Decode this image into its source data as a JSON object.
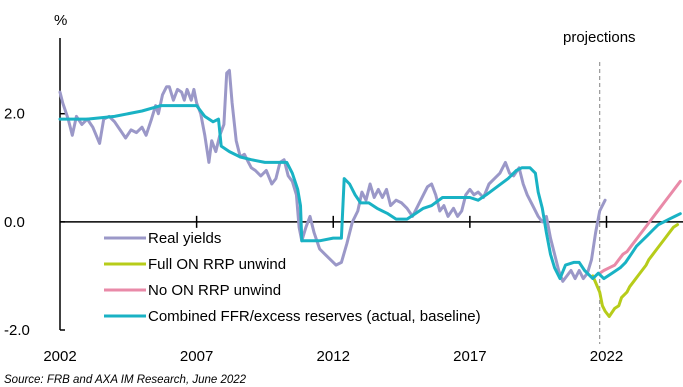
{
  "chart_data": {
    "type": "line",
    "ylabel": "%",
    "annotation": "projections",
    "projection_start": 2021.75,
    "source": "Source: FRB and AXA IM Research, June 2022",
    "xlim": [
      2002,
      2024.8
    ],
    "ylim": [
      -2.0,
      3.4
    ],
    "x_ticks": [
      2002,
      2007,
      2012,
      2017,
      2022
    ],
    "x_tick_labels": [
      "2002",
      "2007",
      "2012",
      "2017",
      "2022"
    ],
    "y_ticks": [
      2.0,
      0.0,
      -2.0
    ],
    "y_tick_labels": [
      "2.0",
      "0.0",
      "-2.0"
    ],
    "colors": {
      "real_yields": "#9b98c8",
      "full_unwind": "#b7cc1a",
      "no_unwind": "#e98aa8",
      "combined": "#19b2c4"
    },
    "series": [
      {
        "name": "Real yields",
        "color": "#9b98c8",
        "points": [
          [
            2002.0,
            2.4
          ],
          [
            2002.1,
            2.2
          ],
          [
            2002.3,
            1.9
          ],
          [
            2002.45,
            1.6
          ],
          [
            2002.6,
            1.95
          ],
          [
            2002.8,
            1.8
          ],
          [
            2003.0,
            1.9
          ],
          [
            2003.2,
            1.75
          ],
          [
            2003.45,
            1.45
          ],
          [
            2003.6,
            1.9
          ],
          [
            2003.8,
            1.95
          ],
          [
            2004.0,
            1.85
          ],
          [
            2004.2,
            1.7
          ],
          [
            2004.4,
            1.55
          ],
          [
            2004.6,
            1.7
          ],
          [
            2004.8,
            1.65
          ],
          [
            2005.0,
            1.75
          ],
          [
            2005.15,
            1.6
          ],
          [
            2005.35,
            1.9
          ],
          [
            2005.5,
            2.15
          ],
          [
            2005.6,
            2.0
          ],
          [
            2005.75,
            2.35
          ],
          [
            2005.9,
            2.5
          ],
          [
            2006.0,
            2.5
          ],
          [
            2006.15,
            2.25
          ],
          [
            2006.3,
            2.45
          ],
          [
            2006.45,
            2.4
          ],
          [
            2006.55,
            2.25
          ],
          [
            2006.65,
            2.45
          ],
          [
            2006.8,
            2.25
          ],
          [
            2006.9,
            2.45
          ],
          [
            2007.0,
            2.2
          ],
          [
            2007.15,
            2.0
          ],
          [
            2007.3,
            1.6
          ],
          [
            2007.45,
            1.1
          ],
          [
            2007.55,
            1.5
          ],
          [
            2007.7,
            1.3
          ],
          [
            2007.85,
            1.6
          ],
          [
            2008.0,
            1.8
          ],
          [
            2008.1,
            2.75
          ],
          [
            2008.2,
            2.8
          ],
          [
            2008.3,
            2.2
          ],
          [
            2008.45,
            1.5
          ],
          [
            2008.6,
            1.2
          ],
          [
            2008.75,
            1.25
          ],
          [
            2008.9,
            1.1
          ],
          [
            2009.0,
            1.0
          ],
          [
            2009.15,
            0.95
          ],
          [
            2009.35,
            0.85
          ],
          [
            2009.55,
            0.95
          ],
          [
            2009.75,
            0.7
          ],
          [
            2009.9,
            0.8
          ],
          [
            2010.05,
            1.1
          ],
          [
            2010.2,
            1.15
          ],
          [
            2010.35,
            0.85
          ],
          [
            2010.5,
            0.75
          ],
          [
            2010.65,
            0.5
          ],
          [
            2010.75,
            -0.1
          ],
          [
            2010.85,
            -0.35
          ],
          [
            2011.0,
            -0.1
          ],
          [
            2011.15,
            0.1
          ],
          [
            2011.3,
            -0.2
          ],
          [
            2011.5,
            -0.5
          ],
          [
            2011.7,
            -0.6
          ],
          [
            2011.9,
            -0.7
          ],
          [
            2012.1,
            -0.8
          ],
          [
            2012.3,
            -0.75
          ],
          [
            2012.5,
            -0.4
          ],
          [
            2012.7,
            0.0
          ],
          [
            2012.9,
            0.2
          ],
          [
            2013.05,
            0.55
          ],
          [
            2013.2,
            0.4
          ],
          [
            2013.35,
            0.7
          ],
          [
            2013.5,
            0.45
          ],
          [
            2013.65,
            0.6
          ],
          [
            2013.8,
            0.45
          ],
          [
            2013.95,
            0.6
          ],
          [
            2014.1,
            0.3
          ],
          [
            2014.3,
            0.4
          ],
          [
            2014.5,
            0.35
          ],
          [
            2014.7,
            0.25
          ],
          [
            2014.9,
            0.1
          ],
          [
            2015.1,
            0.3
          ],
          [
            2015.3,
            0.5
          ],
          [
            2015.45,
            0.65
          ],
          [
            2015.6,
            0.7
          ],
          [
            2015.75,
            0.5
          ],
          [
            2015.9,
            0.2
          ],
          [
            2016.05,
            0.3
          ],
          [
            2016.2,
            0.1
          ],
          [
            2016.4,
            0.25
          ],
          [
            2016.55,
            0.1
          ],
          [
            2016.7,
            0.2
          ],
          [
            2016.85,
            0.5
          ],
          [
            2017.0,
            0.6
          ],
          [
            2017.15,
            0.5
          ],
          [
            2017.3,
            0.55
          ],
          [
            2017.5,
            0.45
          ],
          [
            2017.7,
            0.7
          ],
          [
            2017.9,
            0.8
          ],
          [
            2018.1,
            0.9
          ],
          [
            2018.3,
            1.1
          ],
          [
            2018.45,
            0.9
          ],
          [
            2018.6,
            0.85
          ],
          [
            2018.8,
            1.0
          ],
          [
            2018.95,
            0.7
          ],
          [
            2019.1,
            0.5
          ],
          [
            2019.3,
            0.3
          ],
          [
            2019.5,
            0.1
          ],
          [
            2019.65,
            0.0
          ],
          [
            2019.8,
            0.1
          ],
          [
            2019.95,
            -0.3
          ],
          [
            2020.1,
            -0.6
          ],
          [
            2020.25,
            -0.9
          ],
          [
            2020.4,
            -1.1
          ],
          [
            2020.55,
            -1.0
          ],
          [
            2020.7,
            -0.9
          ],
          [
            2020.85,
            -1.05
          ],
          [
            2021.0,
            -0.9
          ],
          [
            2021.15,
            -1.05
          ],
          [
            2021.3,
            -0.95
          ],
          [
            2021.45,
            -0.7
          ],
          [
            2021.6,
            -0.2
          ],
          [
            2021.75,
            0.2
          ],
          [
            2021.95,
            0.4
          ]
        ]
      },
      {
        "name": "Full ON RRP unwind",
        "color": "#b7cc1a",
        "points": [
          [
            2021.5,
            -1.0
          ],
          [
            2021.75,
            -1.3
          ],
          [
            2021.85,
            -1.55
          ],
          [
            2021.95,
            -1.65
          ],
          [
            2022.1,
            -1.75
          ],
          [
            2022.3,
            -1.6
          ],
          [
            2022.45,
            -1.55
          ],
          [
            2022.55,
            -1.4
          ],
          [
            2022.75,
            -1.3
          ],
          [
            2022.85,
            -1.2
          ],
          [
            2023.0,
            -1.1
          ],
          [
            2023.15,
            -1.0
          ],
          [
            2023.3,
            -0.9
          ],
          [
            2023.45,
            -0.8
          ],
          [
            2023.55,
            -0.7
          ],
          [
            2023.7,
            -0.6
          ],
          [
            2023.85,
            -0.5
          ],
          [
            2024.0,
            -0.4
          ],
          [
            2024.15,
            -0.3
          ],
          [
            2024.3,
            -0.2
          ],
          [
            2024.45,
            -0.1
          ],
          [
            2024.6,
            -0.05
          ]
        ]
      },
      {
        "name": "No ON RRP unwind",
        "color": "#e98aa8",
        "points": [
          [
            2021.75,
            -0.95
          ],
          [
            2021.9,
            -0.9
          ],
          [
            2022.1,
            -0.85
          ],
          [
            2022.3,
            -0.8
          ],
          [
            2022.45,
            -0.7
          ],
          [
            2022.6,
            -0.6
          ],
          [
            2022.75,
            -0.55
          ],
          [
            2022.9,
            -0.45
          ],
          [
            2023.05,
            -0.35
          ],
          [
            2023.2,
            -0.25
          ],
          [
            2023.35,
            -0.15
          ],
          [
            2023.5,
            -0.05
          ],
          [
            2023.65,
            0.05
          ],
          [
            2023.8,
            0.15
          ],
          [
            2023.95,
            0.25
          ],
          [
            2024.1,
            0.35
          ],
          [
            2024.25,
            0.45
          ],
          [
            2024.4,
            0.55
          ],
          [
            2024.55,
            0.65
          ],
          [
            2024.7,
            0.75
          ]
        ]
      },
      {
        "name": "Combined FFR/excess reserves (actual, baseline)",
        "color": "#19b2c4",
        "points": [
          [
            2002.0,
            1.9
          ],
          [
            2003.0,
            1.9
          ],
          [
            2004.0,
            1.95
          ],
          [
            2005.0,
            2.05
          ],
          [
            2005.7,
            2.15
          ],
          [
            2007.0,
            2.15
          ],
          [
            2007.3,
            1.95
          ],
          [
            2007.6,
            1.85
          ],
          [
            2007.8,
            1.9
          ],
          [
            2007.9,
            1.4
          ],
          [
            2008.2,
            1.3
          ],
          [
            2008.6,
            1.2
          ],
          [
            2009.0,
            1.15
          ],
          [
            2009.5,
            1.1
          ],
          [
            2010.0,
            1.1
          ],
          [
            2010.3,
            1.1
          ],
          [
            2010.5,
            0.9
          ],
          [
            2010.7,
            0.6
          ],
          [
            2010.8,
            0.3
          ],
          [
            2010.85,
            -0.35
          ],
          [
            2011.5,
            -0.35
          ],
          [
            2012.0,
            -0.3
          ],
          [
            2012.3,
            -0.3
          ],
          [
            2012.4,
            0.8
          ],
          [
            2012.6,
            0.7
          ],
          [
            2012.8,
            0.5
          ],
          [
            2013.0,
            0.35
          ],
          [
            2013.3,
            0.35
          ],
          [
            2013.6,
            0.25
          ],
          [
            2014.0,
            0.15
          ],
          [
            2014.3,
            0.05
          ],
          [
            2014.7,
            0.05
          ],
          [
            2015.0,
            0.15
          ],
          [
            2015.3,
            0.25
          ],
          [
            2015.6,
            0.3
          ],
          [
            2016.0,
            0.45
          ],
          [
            2016.5,
            0.45
          ],
          [
            2017.0,
            0.45
          ],
          [
            2017.3,
            0.4
          ],
          [
            2017.6,
            0.5
          ],
          [
            2018.0,
            0.65
          ],
          [
            2018.4,
            0.8
          ],
          [
            2018.7,
            0.95
          ],
          [
            2018.9,
            1.0
          ],
          [
            2019.2,
            1.0
          ],
          [
            2019.4,
            0.9
          ],
          [
            2019.5,
            0.55
          ],
          [
            2019.65,
            0.25
          ],
          [
            2019.8,
            -0.2
          ],
          [
            2019.95,
            -0.6
          ],
          [
            2020.1,
            -0.85
          ],
          [
            2020.3,
            -1.05
          ],
          [
            2020.5,
            -0.8
          ],
          [
            2020.8,
            -0.75
          ],
          [
            2021.0,
            -0.75
          ],
          [
            2021.2,
            -0.9
          ],
          [
            2021.5,
            -1.05
          ],
          [
            2021.7,
            -0.95
          ],
          [
            2021.9,
            -1.05
          ],
          [
            2022.2,
            -0.95
          ],
          [
            2022.5,
            -0.85
          ],
          [
            2022.7,
            -0.75
          ],
          [
            2022.9,
            -0.6
          ],
          [
            2023.1,
            -0.45
          ],
          [
            2023.3,
            -0.35
          ],
          [
            2023.5,
            -0.25
          ],
          [
            2023.7,
            -0.15
          ],
          [
            2023.9,
            -0.05
          ],
          [
            2024.1,
            0.0
          ],
          [
            2024.3,
            0.05
          ],
          [
            2024.5,
            0.1
          ],
          [
            2024.7,
            0.15
          ]
        ]
      }
    ]
  }
}
